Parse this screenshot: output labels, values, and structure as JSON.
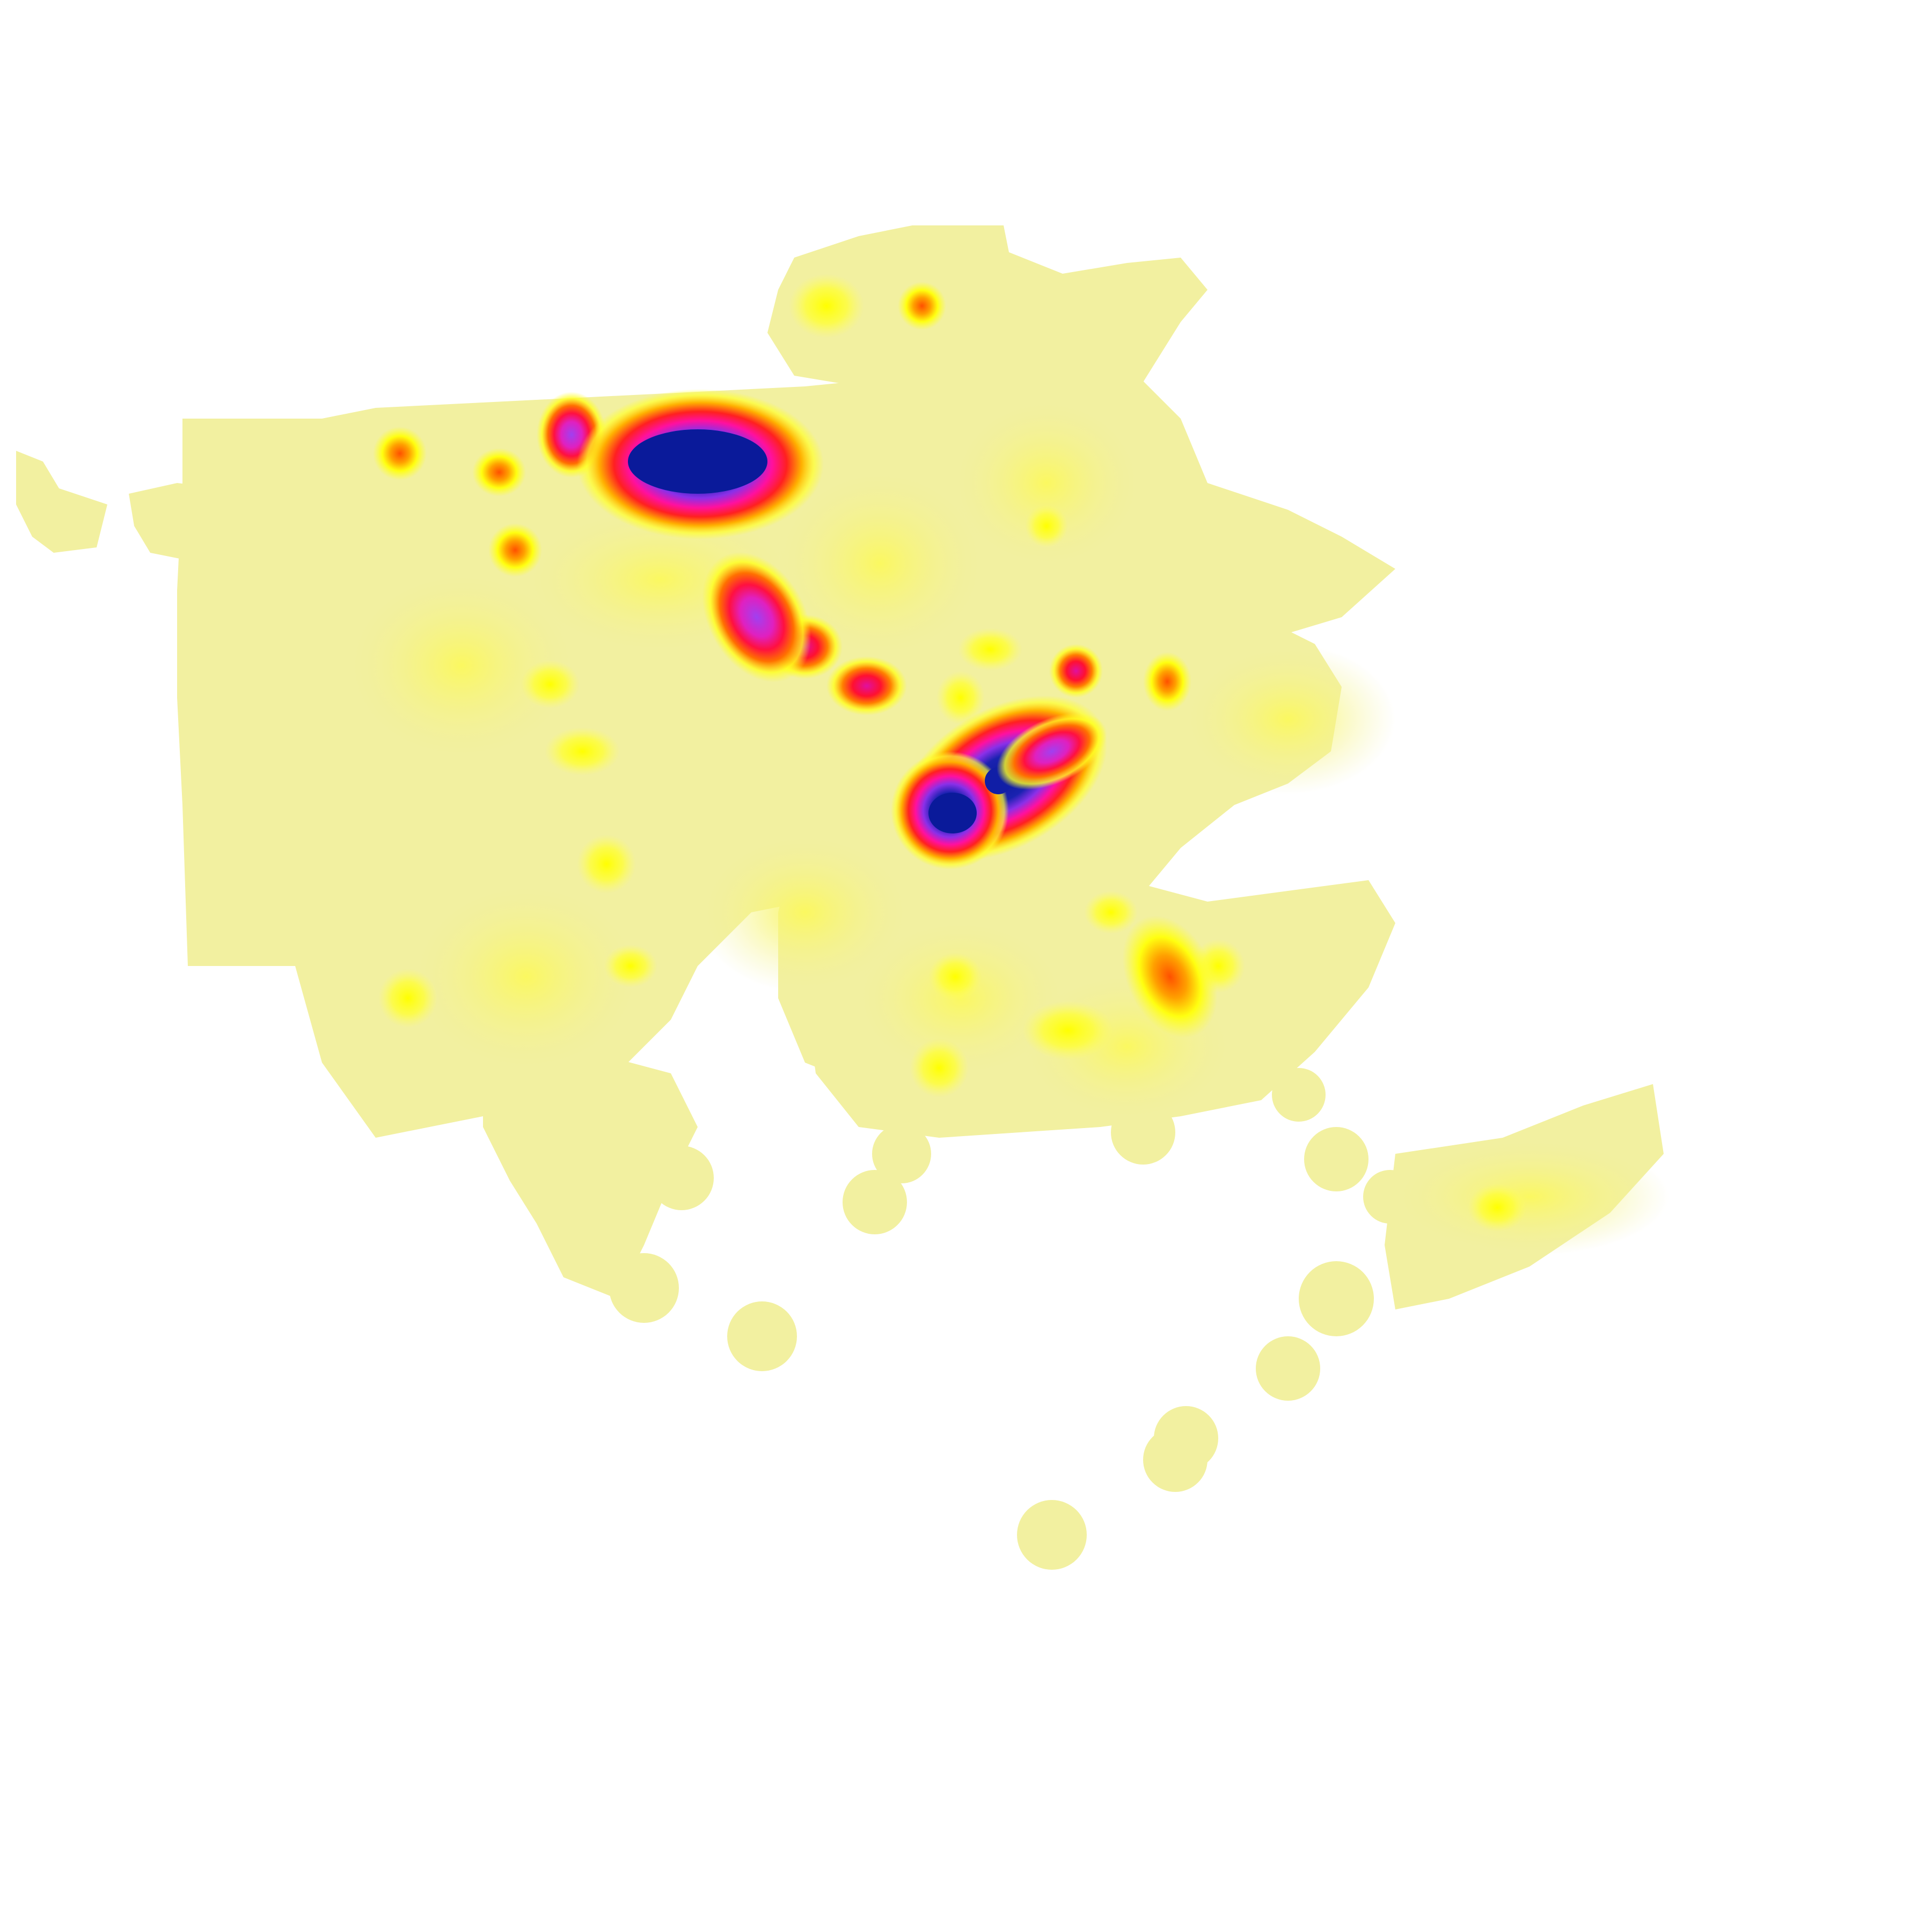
{
  "map": {
    "style": "density-heatmap",
    "colors": {
      "background": "#ffffff",
      "base": "#f2f0a0",
      "low": "#ffff33",
      "mid": "#ff8c00",
      "high_red": "#ff1030",
      "high_magenta": "#e030f0",
      "peak": "#1020a8"
    },
    "hotspots": [
      {
        "name": "north-cluster-a",
        "intensity": 0.97
      },
      {
        "name": "central-band",
        "intensity": 0.98
      },
      {
        "name": "north-spot",
        "intensity": 0.75
      },
      {
        "name": "central-north-spot",
        "intensity": 0.8
      },
      {
        "name": "central-spot",
        "intensity": 0.7
      },
      {
        "name": "east-spot",
        "intensity": 0.7
      },
      {
        "name": "southeast-spot",
        "intensity": 0.55
      },
      {
        "name": "northwest-spot",
        "intensity": 0.45
      }
    ]
  }
}
